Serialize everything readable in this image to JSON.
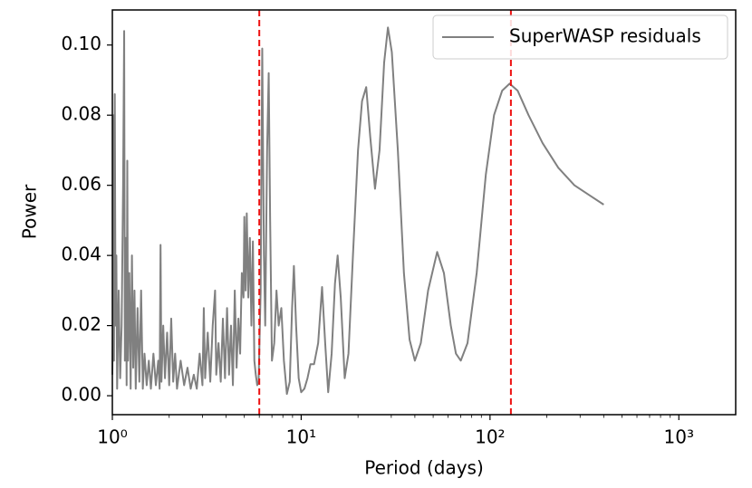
{
  "chart_data": {
    "type": "line",
    "xlabel": "Period (days)",
    "ylabel": "Power",
    "xscale": "log",
    "xlim": [
      1,
      2000
    ],
    "ylim": [
      -0.0054,
      0.11
    ],
    "xticks": [
      {
        "value": 1,
        "label": "10⁰"
      },
      {
        "value": 10,
        "label": "10¹"
      },
      {
        "value": 100,
        "label": "10²"
      },
      {
        "value": 1000,
        "label": "10³"
      }
    ],
    "yticks": [
      {
        "value": 0,
        "label": "0.00"
      },
      0.02,
      0.04,
      0.06,
      0.08,
      {
        "value": 0.1,
        "label": "0.10"
      }
    ],
    "legend": "upper right",
    "vlines": [
      6.0,
      129
    ],
    "vline_color": "#ee1111",
    "x": [
      1.0,
      1.01,
      1.015,
      1.02,
      1.03,
      1.04,
      1.05,
      1.06,
      1.08,
      1.1,
      1.12,
      1.14,
      1.155,
      1.165,
      1.18,
      1.19,
      1.2,
      1.21,
      1.23,
      1.25,
      1.27,
      1.29,
      1.31,
      1.33,
      1.36,
      1.39,
      1.42,
      1.45,
      1.48,
      1.52,
      1.56,
      1.6,
      1.65,
      1.7,
      1.75,
      1.78,
      1.8,
      1.82,
      1.86,
      1.9,
      1.95,
      2.0,
      2.05,
      2.1,
      2.15,
      2.2,
      2.3,
      2.4,
      2.5,
      2.6,
      2.7,
      2.8,
      2.9,
      3.0,
      3.05,
      3.1,
      3.2,
      3.3,
      3.4,
      3.5,
      3.55,
      3.65,
      3.75,
      3.85,
      3.95,
      4.05,
      4.15,
      4.25,
      4.35,
      4.45,
      4.55,
      4.65,
      4.75,
      4.85,
      4.95,
      5.0,
      5.08,
      5.15,
      5.25,
      5.35,
      5.45,
      5.55,
      5.65,
      5.75,
      5.85,
      5.95,
      6.1,
      6.22,
      6.35,
      6.45,
      6.6,
      6.73,
      6.85,
      7.0,
      7.2,
      7.4,
      7.6,
      7.85,
      8.1,
      8.4,
      8.7,
      8.95,
      9.15,
      9.4,
      9.7,
      10.0,
      10.4,
      10.8,
      11.2,
      11.7,
      12.3,
      12.9,
      13.4,
      13.9,
      14.5,
      15.1,
      15.6,
      16.2,
      17.0,
      17.8,
      18.8,
      20.0,
      21.0,
      22.1,
      23.2,
      24.6,
      26.0,
      27.5,
      28.8,
      30.2,
      32.5,
      35.0,
      37.5,
      40.0,
      43,
      47,
      52.5,
      57,
      62,
      66,
      70,
      76,
      85,
      95,
      105,
      116,
      127,
      140,
      160,
      190,
      230,
      280,
      340,
      400
    ],
    "series": [
      {
        "name": "SuperWASP residuals",
        "color": "#808080",
        "values": [
          0.006,
          0.03,
          0.08,
          0.01,
          0.086,
          0.02,
          0.04,
          0.002,
          0.03,
          0.005,
          0.02,
          0.06,
          0.104,
          0.01,
          0.045,
          0.003,
          0.067,
          0.01,
          0.035,
          0.002,
          0.04,
          0.008,
          0.03,
          0.002,
          0.025,
          0.004,
          0.03,
          0.002,
          0.012,
          0.003,
          0.01,
          0.002,
          0.012,
          0.003,
          0.01,
          0.002,
          0.043,
          0.004,
          0.02,
          0.005,
          0.018,
          0.003,
          0.022,
          0.004,
          0.012,
          0.002,
          0.01,
          0.003,
          0.008,
          0.002,
          0.006,
          0.002,
          0.012,
          0.003,
          0.025,
          0.005,
          0.018,
          0.004,
          0.02,
          0.03,
          0.006,
          0.015,
          0.004,
          0.022,
          0.005,
          0.025,
          0.006,
          0.02,
          0.003,
          0.03,
          0.008,
          0.022,
          0.012,
          0.035,
          0.028,
          0.051,
          0.03,
          0.052,
          0.028,
          0.045,
          0.02,
          0.044,
          0.01,
          0.006,
          0.003,
          0.004,
          0.03,
          0.099,
          0.04,
          0.02,
          0.07,
          0.092,
          0.05,
          0.01,
          0.015,
          0.03,
          0.02,
          0.025,
          0.01,
          0.0005,
          0.004,
          0.025,
          0.037,
          0.02,
          0.005,
          0.001,
          0.002,
          0.005,
          0.009,
          0.009,
          0.015,
          0.031,
          0.015,
          0.001,
          0.012,
          0.032,
          0.04,
          0.028,
          0.005,
          0.012,
          0.04,
          0.07,
          0.084,
          0.088,
          0.074,
          0.059,
          0.07,
          0.095,
          0.105,
          0.098,
          0.07,
          0.035,
          0.016,
          0.01,
          0.015,
          0.03,
          0.041,
          0.035,
          0.02,
          0.012,
          0.01,
          0.015,
          0.035,
          0.063,
          0.08,
          0.087,
          0.089,
          0.087,
          0.08,
          0.072,
          0.065,
          0.06,
          0.057,
          0.0545
        ]
      }
    ]
  }
}
